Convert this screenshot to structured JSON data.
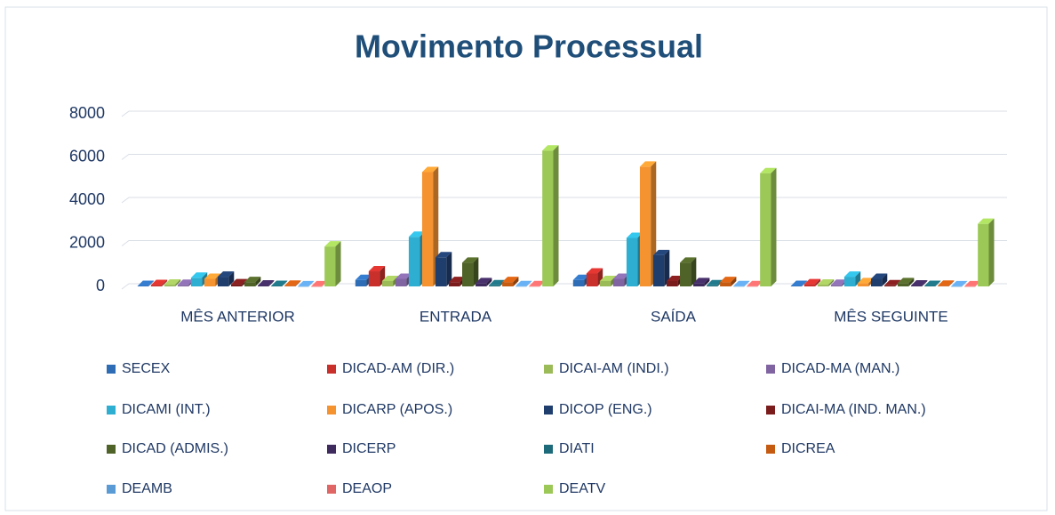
{
  "chart_data": {
    "type": "bar3d",
    "title": "Movimento Processual",
    "categories": [
      "MÊS ANTERIOR",
      "ENTRADA",
      "SAÍDA",
      "MÊS SEGUINTE"
    ],
    "ylim": [
      0,
      8000
    ],
    "yticks": [
      0,
      2000,
      4000,
      6000,
      8000
    ],
    "grid": true,
    "series": [
      {
        "name": "SECEX",
        "color": "#2e6db5",
        "values": [
          20,
          300,
          300,
          20
        ]
      },
      {
        "name": "DICAD-AM (DIR.)",
        "color": "#c9302c",
        "values": [
          60,
          700,
          600,
          100
        ]
      },
      {
        "name": "DICAI-AM (INDI.)",
        "color": "#9bbb59",
        "values": [
          80,
          250,
          250,
          80
        ]
      },
      {
        "name": "DICAD-MA (MAN.)",
        "color": "#8064a2",
        "values": [
          70,
          350,
          350,
          70
        ]
      },
      {
        "name": "DICAMI (INT.)",
        "color": "#2eaed0",
        "values": [
          400,
          2300,
          2250,
          450
        ]
      },
      {
        "name": "DICARP (APOS.)",
        "color": "#f59331",
        "values": [
          350,
          5300,
          5550,
          150
        ]
      },
      {
        "name": "DICOP (ENG.)",
        "color": "#1f3e6e",
        "values": [
          450,
          1350,
          1450,
          350
        ]
      },
      {
        "name": "DICAI-MA (IND. MAN.)",
        "color": "#7b1c1c",
        "values": [
          100,
          200,
          250,
          50
        ]
      },
      {
        "name": "DICAD (ADMIS.)",
        "color": "#4f6228",
        "values": [
          200,
          1100,
          1100,
          150
        ]
      },
      {
        "name": "DICERP",
        "color": "#3f2a5e",
        "values": [
          40,
          150,
          150,
          40
        ]
      },
      {
        "name": "DIATI",
        "color": "#1d6b7a",
        "values": [
          20,
          50,
          50,
          20
        ]
      },
      {
        "name": "DICREA",
        "color": "#c55a11",
        "values": [
          30,
          200,
          200,
          30
        ]
      },
      {
        "name": "DEAMB",
        "color": "#5b9bd5",
        "values": [
          5,
          10,
          10,
          5
        ]
      },
      {
        "name": "DEAOP",
        "color": "#e06666",
        "values": [
          5,
          10,
          10,
          5
        ]
      },
      {
        "name": "DEATV",
        "color": "#9bc856",
        "values": [
          1850,
          6300,
          5250,
          2900
        ]
      }
    ]
  }
}
